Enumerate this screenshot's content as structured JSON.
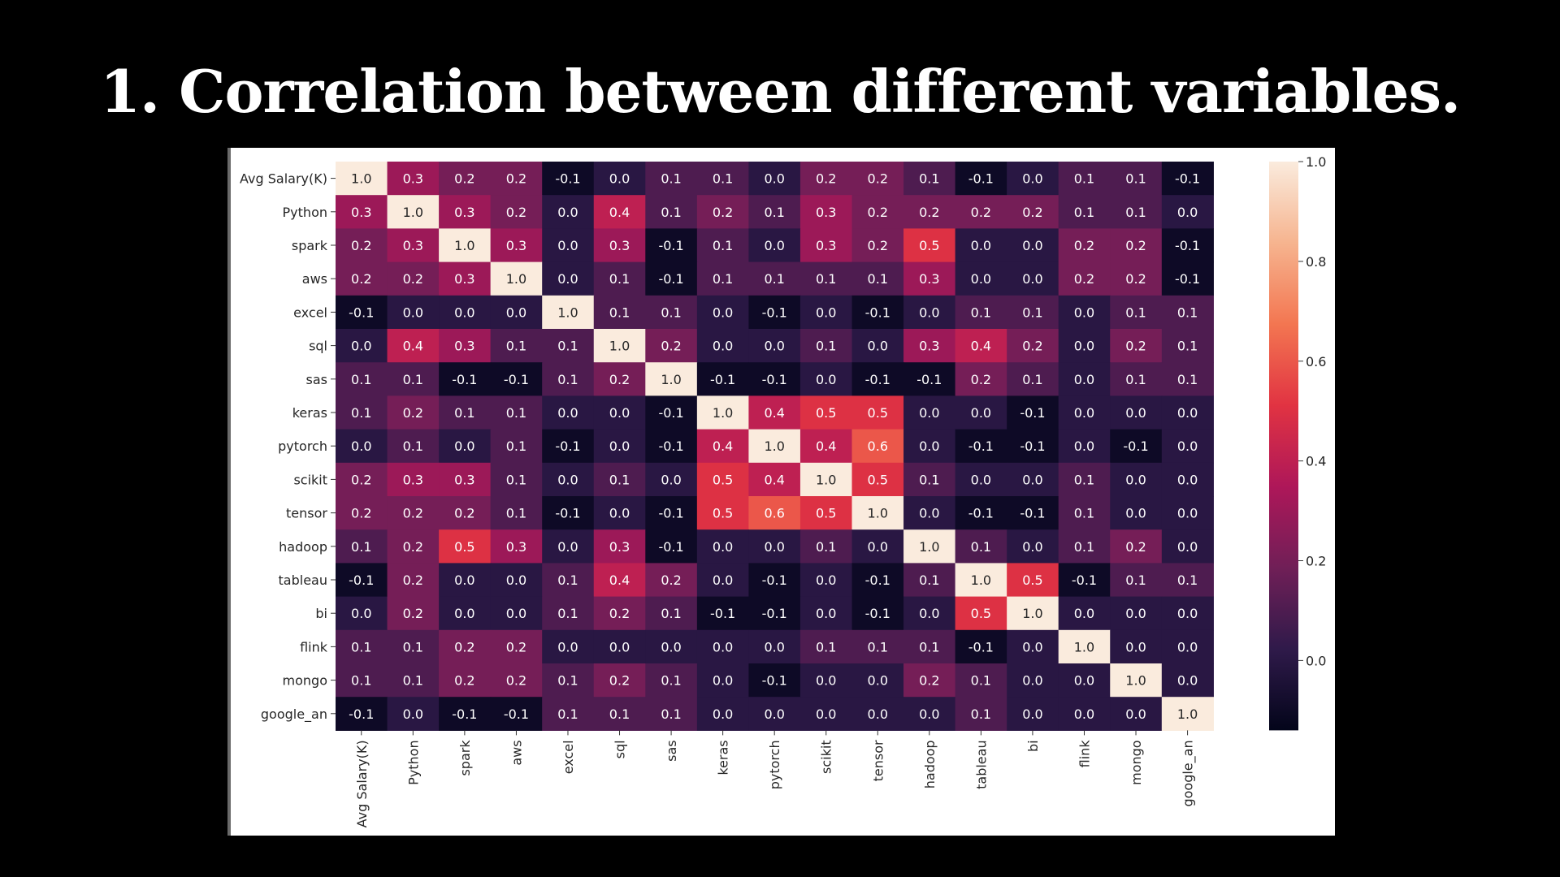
{
  "slide": {
    "title": "1. Correlation between different variables."
  },
  "chart_data": {
    "type": "heatmap",
    "labels": [
      "Avg Salary(K)",
      "Python",
      "spark",
      "aws",
      "excel",
      "sql",
      "sas",
      "keras",
      "pytorch",
      "scikit",
      "tensor",
      "hadoop",
      "tableau",
      "bi",
      "flink",
      "mongo",
      "google_an"
    ],
    "matrix": [
      [
        1.0,
        0.3,
        0.2,
        0.2,
        -0.1,
        0.0,
        0.1,
        0.1,
        0.0,
        0.2,
        0.2,
        0.1,
        -0.1,
        -0.0,
        0.1,
        0.1,
        -0.1
      ],
      [
        0.3,
        1.0,
        0.3,
        0.2,
        -0.0,
        0.4,
        0.1,
        0.2,
        0.1,
        0.3,
        0.2,
        0.2,
        0.2,
        0.2,
        0.1,
        0.1,
        -0.0
      ],
      [
        0.2,
        0.3,
        1.0,
        0.3,
        -0.0,
        0.3,
        -0.1,
        0.1,
        0.0,
        0.3,
        0.2,
        0.5,
        -0.0,
        -0.0,
        0.2,
        0.2,
        -0.1
      ],
      [
        0.2,
        0.2,
        0.3,
        1.0,
        -0.0,
        0.1,
        -0.1,
        0.1,
        0.1,
        0.1,
        0.1,
        0.3,
        -0.0,
        0.0,
        0.2,
        0.2,
        -0.1
      ],
      [
        -0.1,
        -0.0,
        -0.0,
        -0.0,
        1.0,
        0.1,
        0.1,
        -0.0,
        -0.1,
        -0.0,
        -0.1,
        0.0,
        0.1,
        0.1,
        -0.0,
        0.1,
        0.1
      ],
      [
        0.0,
        0.4,
        0.3,
        0.1,
        0.1,
        1.0,
        0.2,
        0.0,
        -0.0,
        0.1,
        0.0,
        0.3,
        0.4,
        0.2,
        -0.0,
        0.2,
        0.1
      ],
      [
        0.1,
        0.1,
        -0.1,
        -0.1,
        0.1,
        0.2,
        1.0,
        -0.1,
        -0.1,
        0.0,
        -0.1,
        -0.1,
        0.2,
        0.1,
        -0.0,
        0.1,
        0.1
      ],
      [
        0.1,
        0.2,
        0.1,
        0.1,
        -0.0,
        0.0,
        -0.1,
        1.0,
        0.4,
        0.5,
        0.5,
        0.0,
        -0.0,
        -0.1,
        -0.0,
        0.0,
        0.0
      ],
      [
        0.0,
        0.1,
        0.0,
        0.1,
        -0.1,
        -0.0,
        -0.1,
        0.4,
        1.0,
        0.4,
        0.6,
        -0.0,
        -0.1,
        -0.1,
        -0.0,
        -0.1,
        -0.0
      ],
      [
        0.2,
        0.3,
        0.3,
        0.1,
        -0.0,
        0.1,
        0.0,
        0.5,
        0.4,
        1.0,
        0.5,
        0.1,
        -0.0,
        -0.0,
        0.1,
        0.0,
        -0.0
      ],
      [
        0.2,
        0.2,
        0.2,
        0.1,
        -0.1,
        0.0,
        -0.1,
        0.5,
        0.6,
        0.5,
        1.0,
        -0.0,
        -0.1,
        -0.1,
        0.1,
        -0.0,
        -0.0
      ],
      [
        0.1,
        0.2,
        0.5,
        0.3,
        0.0,
        0.3,
        -0.1,
        0.0,
        -0.0,
        0.1,
        -0.0,
        1.0,
        0.1,
        0.0,
        0.1,
        0.2,
        -0.0
      ],
      [
        -0.1,
        0.2,
        -0.0,
        -0.0,
        0.1,
        0.4,
        0.2,
        -0.0,
        -0.1,
        -0.0,
        -0.1,
        0.1,
        1.0,
        0.5,
        -0.1,
        0.1,
        0.1
      ],
      [
        -0.0,
        0.2,
        -0.0,
        0.0,
        0.1,
        0.2,
        0.1,
        -0.1,
        -0.1,
        -0.0,
        -0.1,
        0.0,
        0.5,
        1.0,
        -0.0,
        0.0,
        0.0
      ],
      [
        0.1,
        0.1,
        0.2,
        0.2,
        -0.0,
        -0.0,
        -0.0,
        -0.0,
        -0.0,
        0.1,
        0.1,
        0.1,
        -0.1,
        -0.0,
        1.0,
        0.0,
        -0.0
      ],
      [
        0.1,
        0.1,
        0.2,
        0.2,
        0.1,
        0.2,
        0.1,
        0.0,
        -0.1,
        0.0,
        -0.0,
        0.2,
        0.1,
        0.0,
        0.0,
        1.0,
        0.0
      ],
      [
        -0.1,
        -0.0,
        -0.1,
        -0.1,
        0.1,
        0.1,
        0.1,
        0.0,
        -0.0,
        -0.0,
        -0.0,
        -0.0,
        0.1,
        0.0,
        -0.0,
        0.0,
        1.0
      ]
    ],
    "colorbar": {
      "vmin": -0.14,
      "vmax": 1.0,
      "ticks": [
        0.0,
        0.2,
        0.4,
        0.6,
        0.8,
        1.0
      ],
      "tick_labels": [
        "0.0",
        "0.2",
        "0.4",
        "0.6",
        "0.8",
        "1.0"
      ],
      "colormap": "rocket",
      "stops": [
        "#03051a",
        "#2f1a4a",
        "#701f57",
        "#ae1759",
        "#e13342",
        "#f37651",
        "#f6b48f",
        "#faebdd"
      ]
    },
    "annotation_light_text": "#ffffff",
    "annotation_dark_text": "#262626"
  }
}
